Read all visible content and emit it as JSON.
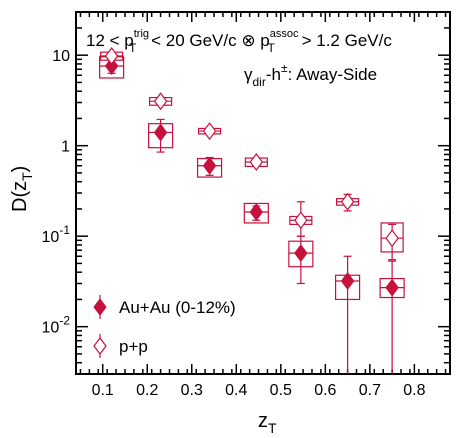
{
  "chart_data": {
    "type": "scatter",
    "title": "",
    "annotations": {
      "kinematics_html": "12 < p<tspan class='sup' dy='-9' font-size='11'>trig</tspan><tspan dx='-20' dy='15' font-size='12'>T</tspan><tspan dy='-6'> < 20 GeV/c ⊗ p</tspan><tspan dy='-9' font-size='11'>assoc</tspan><tspan dx='-30' dy='15' font-size='12'>T</tspan><tspan dy='-6' dx='20'> > 1.2 GeV/c</tspan>",
      "kinematics": "12 < pTtrig < 20 GeV/c ⊗ pTassoc > 1.2 GeV/c",
      "channel": "γdir-h±: Away-Side"
    },
    "xlabel": "zT",
    "ylabel": "D(zT)",
    "x_axis": {
      "range": [
        0.04,
        0.88
      ],
      "ticks": [
        0.1,
        0.2,
        0.3,
        0.4,
        0.5,
        0.6,
        0.7,
        0.8
      ],
      "tick_labels": [
        "0.1",
        "0.2",
        "0.3",
        "0.4",
        "0.5",
        "0.6",
        "0.7",
        "0.8"
      ]
    },
    "y_axis": {
      "scale": "log",
      "range": [
        0.003,
        30
      ],
      "ticks": [
        0.01,
        0.1,
        1,
        10
      ]
    },
    "legend": {
      "placement": "bottom-left"
    },
    "series": [
      {
        "name": "Au+Au (0-12%)",
        "marker": "filled-diamond",
        "color": "#c8103c",
        "points": [
          {
            "x": 0.12,
            "y": 7.6,
            "ylo": 6.3,
            "yhi": 9.0,
            "syslo": 5.6,
            "syshi": 9.6
          },
          {
            "x": 0.23,
            "y": 1.4,
            "ylo": 0.85,
            "yhi": 1.95,
            "syslo": 0.95,
            "syshi": 1.75
          },
          {
            "x": 0.34,
            "y": 0.6,
            "ylo": 0.47,
            "yhi": 0.74,
            "syslo": 0.45,
            "syshi": 0.72
          },
          {
            "x": 0.445,
            "y": 0.185,
            "ylo": 0.15,
            "yhi": 0.215,
            "syslo": 0.14,
            "syshi": 0.23
          },
          {
            "x": 0.545,
            "y": 0.065,
            "ylo": 0.03,
            "yhi": 0.1,
            "syslo": 0.046,
            "syshi": 0.088
          },
          {
            "x": 0.65,
            "y": 0.032,
            "ylo": 0.003,
            "yhi": 0.06,
            "syslo": 0.02,
            "syshi": 0.037
          },
          {
            "x": 0.75,
            "y": 0.027,
            "ylo": 0.003,
            "yhi": 0.053,
            "syslo": 0.021,
            "syshi": 0.034
          }
        ]
      },
      {
        "name": "p+p",
        "marker": "open-diamond",
        "color": "#c8103c",
        "points": [
          {
            "x": 0.12,
            "y": 9.8,
            "ylo": 9.2,
            "yhi": 10.4,
            "syslo": 8.8,
            "syshi": 10.8
          },
          {
            "x": 0.23,
            "y": 3.1,
            "ylo": 2.95,
            "yhi": 3.3,
            "syslo": 2.8,
            "syshi": 3.4
          },
          {
            "x": 0.34,
            "y": 1.45,
            "ylo": 1.38,
            "yhi": 1.52,
            "syslo": 1.35,
            "syshi": 1.55
          },
          {
            "x": 0.445,
            "y": 0.66,
            "ylo": 0.61,
            "yhi": 0.71,
            "syslo": 0.59,
            "syshi": 0.73
          },
          {
            "x": 0.545,
            "y": 0.15,
            "ylo": 0.1,
            "yhi": 0.24,
            "syslo": 0.135,
            "syshi": 0.165
          },
          {
            "x": 0.65,
            "y": 0.24,
            "ylo": 0.19,
            "yhi": 0.29,
            "syslo": 0.22,
            "syshi": 0.26
          },
          {
            "x": 0.75,
            "y": 0.095,
            "ylo": 0.055,
            "yhi": 0.135,
            "syslo": 0.067,
            "syshi": 0.14
          }
        ]
      }
    ]
  }
}
